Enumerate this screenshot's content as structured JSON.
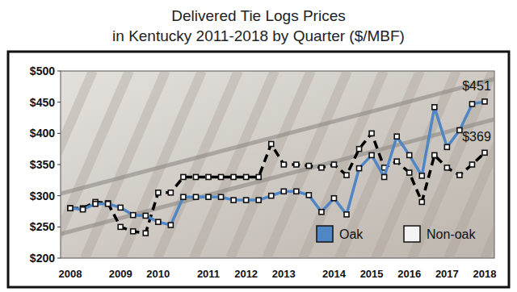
{
  "chart_data": {
    "type": "line",
    "title": "Delivered Tie Logs Prices",
    "subtitle": "in Kentucky 2011-2018 by Quarter ($/MBF)",
    "categories": [
      "2008",
      null,
      null,
      null,
      "2009",
      null,
      null,
      "2010",
      null,
      null,
      null,
      "2011",
      null,
      null,
      "2012",
      null,
      null,
      "2013",
      null,
      null,
      null,
      "2014",
      null,
      null,
      "2015",
      null,
      null,
      "2016",
      null,
      null,
      "2017",
      null,
      null,
      "2018"
    ],
    "series": [
      {
        "name": "Oak",
        "color": "#4f86c6",
        "line_style": "solid",
        "marker": "square",
        "values": [
          280,
          278,
          287,
          287,
          281,
          269,
          268,
          258,
          253,
          298,
          298,
          298,
          298,
          293,
          293,
          293,
          300,
          307,
          307,
          301,
          274,
          296,
          270,
          344,
          365,
          330,
          395,
          365,
          332,
          442,
          378,
          405,
          447,
          451
        ]
      },
      {
        "name": "Non-oak",
        "color": "#000000",
        "line_style": "dashed",
        "marker": "square",
        "values": [
          280,
          280,
          290,
          288,
          250,
          243,
          240,
          305,
          305,
          330,
          330,
          330,
          330,
          330,
          330,
          330,
          383,
          350,
          350,
          348,
          345,
          350,
          333,
          375,
          400,
          345,
          355,
          337,
          290,
          365,
          345,
          333,
          350,
          369
        ]
      }
    ],
    "ylim": [
      200,
      500
    ],
    "yticks": [
      {
        "value": 200,
        "label": "$200"
      },
      {
        "value": 250,
        "label": "$250"
      },
      {
        "value": 300,
        "label": "$300"
      },
      {
        "value": 350,
        "label": "$350"
      },
      {
        "value": 400,
        "label": "$400"
      },
      {
        "value": 450,
        "label": "$450"
      },
      {
        "value": 500,
        "label": "$500"
      }
    ],
    "grid": false,
    "legend": "bottom-right",
    "annotations": [
      {
        "text": "$451",
        "value": 451
      },
      {
        "text": "$369",
        "value": 369
      }
    ]
  }
}
